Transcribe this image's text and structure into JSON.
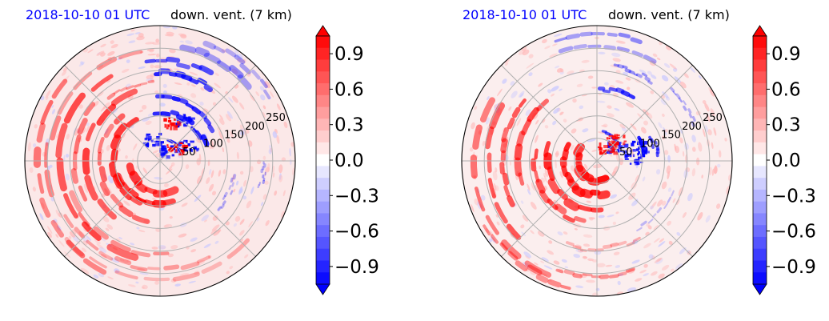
{
  "chart_data": [
    {
      "type": "heatmap",
      "projection": "polar",
      "title_left": "2018-10-10 01 UTC",
      "title_right": "down. vent. (7 km)",
      "radial_tick_labels": [
        "50",
        "100",
        "150",
        "200",
        "250"
      ],
      "radial_tick_values": [
        50,
        100,
        150,
        200,
        250
      ],
      "grid": true,
      "colormap": "bwr",
      "colorbar": {
        "range": [
          -1.05,
          1.05
        ],
        "tick_values": [
          0.9,
          0.6,
          0.3,
          0.0,
          -0.3,
          -0.6,
          -0.9
        ],
        "tick_labels": [
          "0.9",
          "0.6",
          "0.3",
          "0.0",
          "−0.3",
          "−0.6",
          "−0.9"
        ],
        "extend": "both"
      }
    },
    {
      "type": "heatmap",
      "projection": "polar",
      "title_left": "2018-10-10 01 UTC",
      "title_right": "down. vent. (7 km)",
      "radial_tick_labels": [
        "50",
        "100",
        "150",
        "200",
        "250"
      ],
      "radial_tick_values": [
        50,
        100,
        150,
        200,
        250
      ],
      "grid": true,
      "colormap": "bwr",
      "colorbar": {
        "range": [
          -1.05,
          1.05
        ],
        "tick_values": [
          0.9,
          0.6,
          0.3,
          0.0,
          -0.3,
          -0.6,
          -0.9
        ],
        "tick_labels": [
          "0.9",
          "0.6",
          "0.3",
          "0.0",
          "−0.3",
          "−0.6",
          "−0.9"
        ],
        "extend": "both"
      }
    }
  ],
  "colors": {
    "positive": "#ff0000",
    "negative": "#0000ff",
    "neutral": "#ffffff",
    "grid": "#b0b0b0",
    "date_text": "#0000ff"
  }
}
